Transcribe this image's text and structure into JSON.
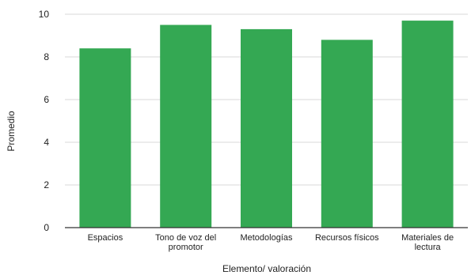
{
  "chart_data": {
    "type": "bar",
    "categories": [
      "Espacios",
      "Tono de voz del promotor",
      "Metodologías",
      "Recursos físicos",
      "Materiales de lectura"
    ],
    "category_label_lines": [
      [
        "Espacios"
      ],
      [
        "Tono de voz del",
        "promotor"
      ],
      [
        "Metodologías"
      ],
      [
        "Recursos físicos"
      ],
      [
        "Materiales de",
        "lectura"
      ]
    ],
    "values": [
      8.4,
      9.5,
      9.3,
      8.8,
      9.7
    ],
    "xlabel": "Elemento/ valoración",
    "ylabel": "Promedio",
    "ylim": [
      0,
      10
    ],
    "yticks": [
      0,
      2,
      4,
      6,
      8,
      10
    ],
    "grid": true,
    "colors": {
      "bar": "#34a853",
      "grid": "#d9d9d9",
      "axis": "#333333",
      "text": "#222222"
    }
  }
}
